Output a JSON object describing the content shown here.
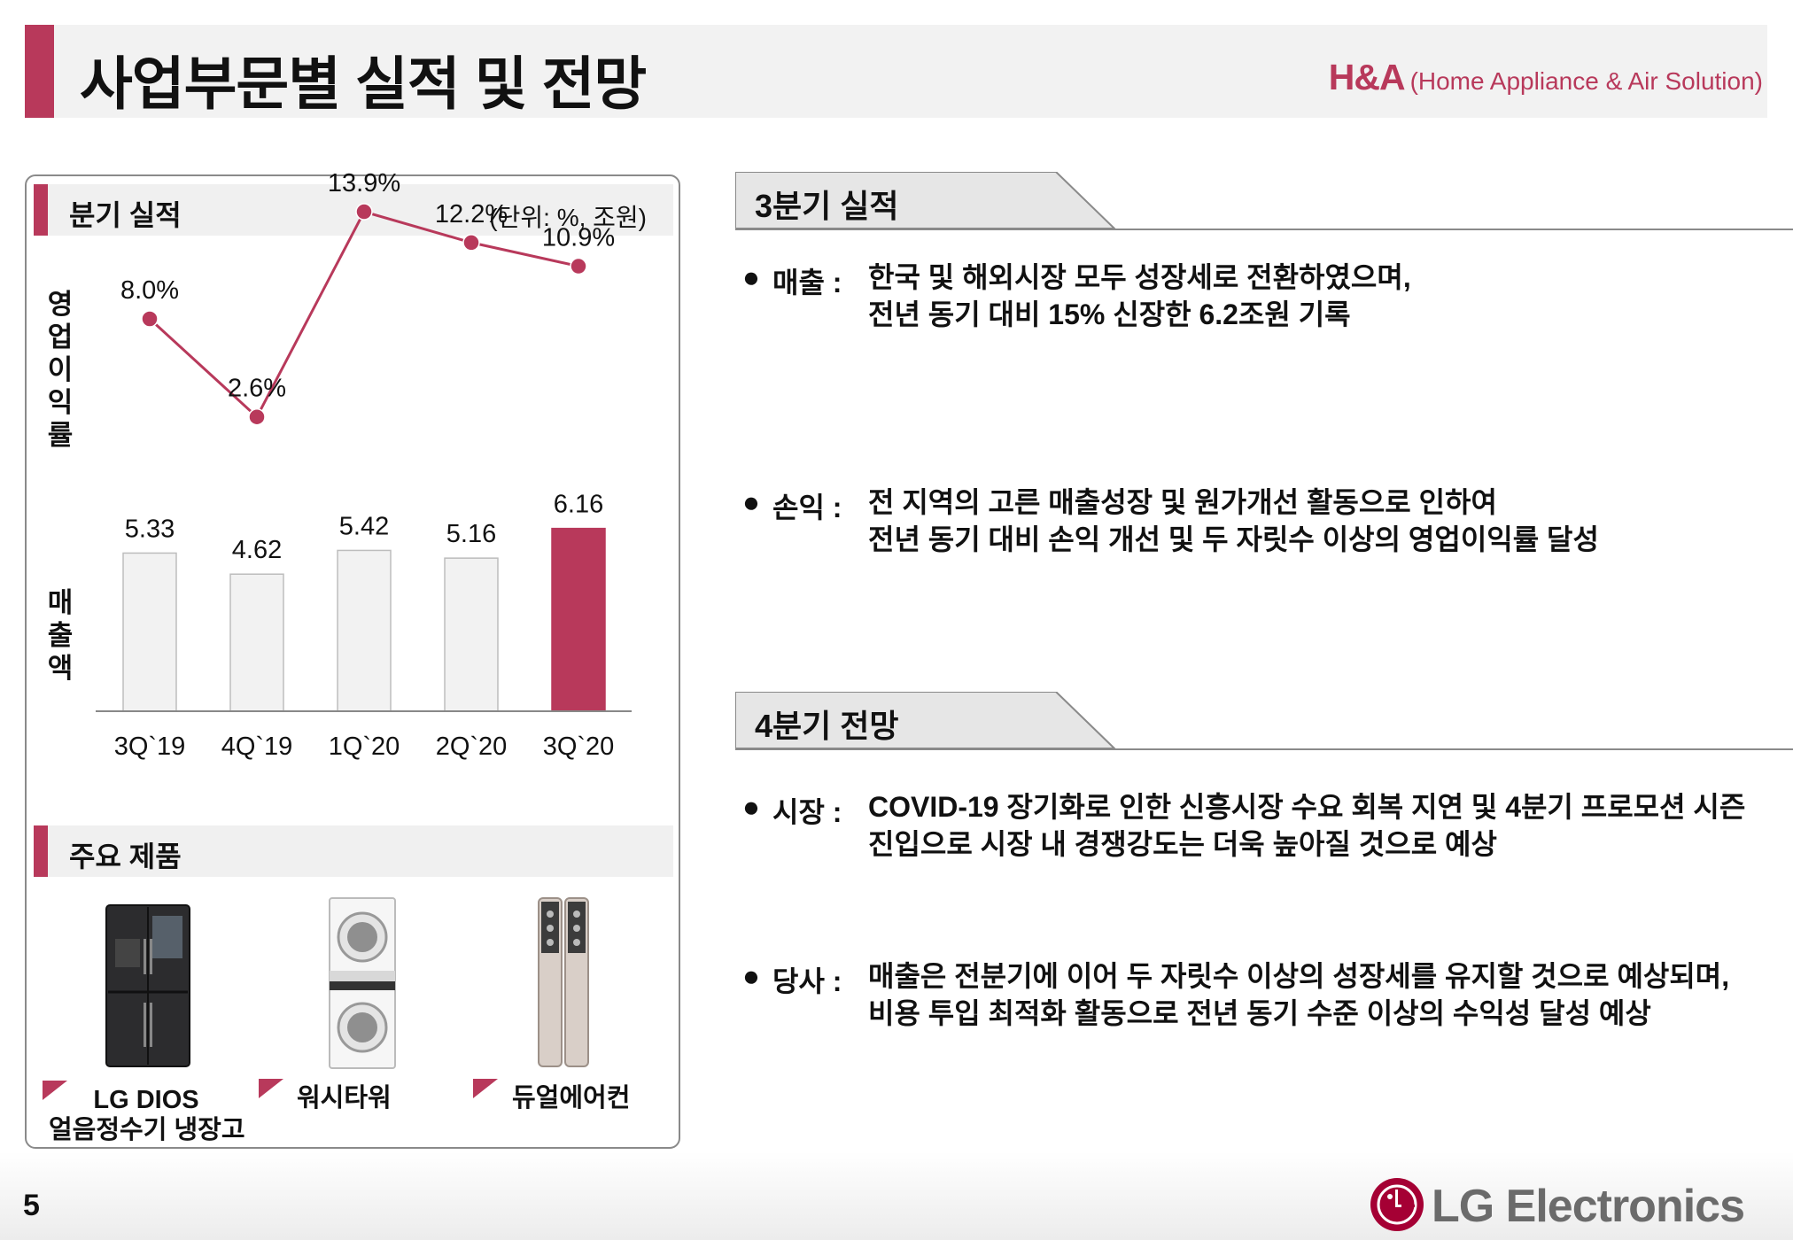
{
  "header": {
    "title": "사업부문별 실적 및 전망",
    "division_abbr": "H&A",
    "division_full": "(Home Appliance & Air Solution)"
  },
  "quarterly": {
    "section_label": "분기 실적",
    "unit": "(단위: %, 조원)",
    "margin_label": "영업이익률",
    "sales_label": "매출액"
  },
  "chart_data": {
    "type": "bar+line",
    "categories": [
      "3Q`19",
      "4Q`19",
      "1Q`20",
      "2Q`20",
      "3Q`20"
    ],
    "series": [
      {
        "name": "영업이익률",
        "type": "line",
        "values": [
          8.0,
          2.6,
          13.9,
          12.2,
          10.9
        ],
        "labels": [
          "8.0%",
          "2.6%",
          "13.9%",
          "12.2%",
          "10.9%"
        ],
        "color": "#b8395b"
      },
      {
        "name": "매출액",
        "type": "bar",
        "values": [
          5.33,
          4.62,
          5.42,
          5.16,
          6.16
        ],
        "labels": [
          "5.33",
          "4.62",
          "5.42",
          "5.16",
          "6.16"
        ],
        "colors": [
          "#f2f2f2",
          "#f2f2f2",
          "#f2f2f2",
          "#f2f2f2",
          "#b8395b"
        ]
      }
    ]
  },
  "products": {
    "section_label": "주요 제품",
    "items": [
      {
        "line1": "LG DIOS",
        "line2": "얼음정수기 냉장고",
        "icon": "refrigerator-icon"
      },
      {
        "line1": "워시타워",
        "line2": "",
        "icon": "washer-dryer-icon"
      },
      {
        "line1": "듀얼에어컨",
        "line2": "",
        "icon": "air-conditioner-icon"
      }
    ]
  },
  "q3": {
    "heading": "3분기 실적",
    "bullets": [
      {
        "key": "매출 :",
        "lines": [
          "한국 및 해외시장 모두 성장세로 전환하였으며,",
          "전년 동기 대비 15% 신장한 6.2조원 기록"
        ]
      },
      {
        "key": "손익 :",
        "lines": [
          "전 지역의 고른 매출성장 및 원가개선 활동으로 인하여",
          "전년 동기 대비 손익 개선 및 두 자릿수 이상의 영업이익률 달성"
        ]
      }
    ]
  },
  "q4": {
    "heading": "4분기 전망",
    "bullets": [
      {
        "key": "시장 :",
        "lines": [
          "COVID-19 장기화로 인한 신흥시장 수요 회복 지연 및 4분기 프로모션 시즌",
          "진입으로 시장 내 경쟁강도는 더욱 높아질 것으로 예상"
        ]
      },
      {
        "key": "당사 :",
        "lines": [
          "매출은 전분기에 이어 두 자릿수 이상의 성장세를 유지할 것으로 예상되며,",
          "비용 투입 최적화 활동으로 전년 동기 수준 이상의 수익성 달성 예상"
        ]
      }
    ]
  },
  "footer": {
    "page_number": "5",
    "brand": "LG Electronics",
    "logo_letters": "LG"
  },
  "colors": {
    "accent": "#b8395b",
    "bar_gray": "#f2f2f2"
  }
}
